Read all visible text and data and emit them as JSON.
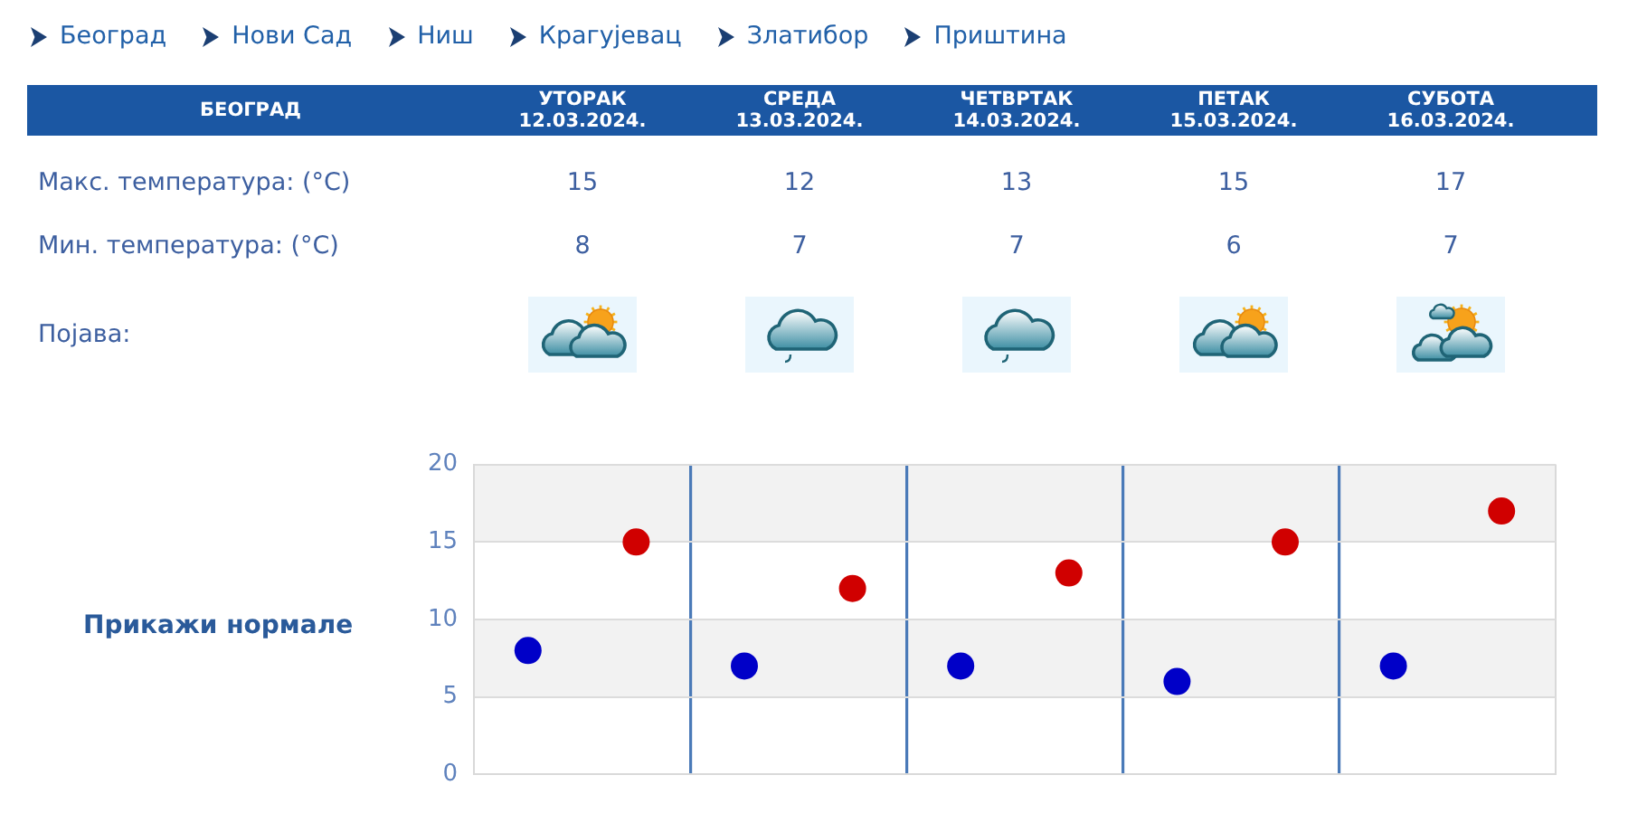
{
  "chart_data": {
    "type": "scatter",
    "title": "БЕОГРАД",
    "categories": [
      null,
      null,
      null,
      null,
      null
    ],
    "series": [
      {
        "color": "#d00000",
        "values": [
          15,
          12,
          13,
          15,
          17
        ]
      },
      {
        "color": "#0000c8",
        "values": [
          8,
          7,
          7,
          6,
          7
        ]
      }
    ],
    "ylim": [
      0,
      20
    ],
    "yticks": [
      0,
      5,
      10,
      15,
      20
    ],
    "grid": true,
    "marker": "circle",
    "data_labels": true,
    "bands": [
      {
        "axis": "y",
        "from": 15,
        "to": 20,
        "color": "#f2f2f2"
      },
      {
        "axis": "y",
        "from": 5,
        "to": 10,
        "color": "#f2f2f2"
      }
    ],
    "annotations": [
      "Београд",
      "Нови Сад",
      "Ниш",
      "Крагујевац",
      "Златибор",
      "Приштина",
      "УТОРАК 12.03.2024.",
      "СРЕДА 13.03.2024.",
      "ЧЕТВРТАК 14.03.2024.",
      "ПЕТАК 15.03.2024.",
      "СУБОТА 16.03.2024.",
      "Макс. температура: (°C)",
      "Мин. температура: (°C)",
      "Појава:",
      "Прикажи нормале"
    ]
  }
}
